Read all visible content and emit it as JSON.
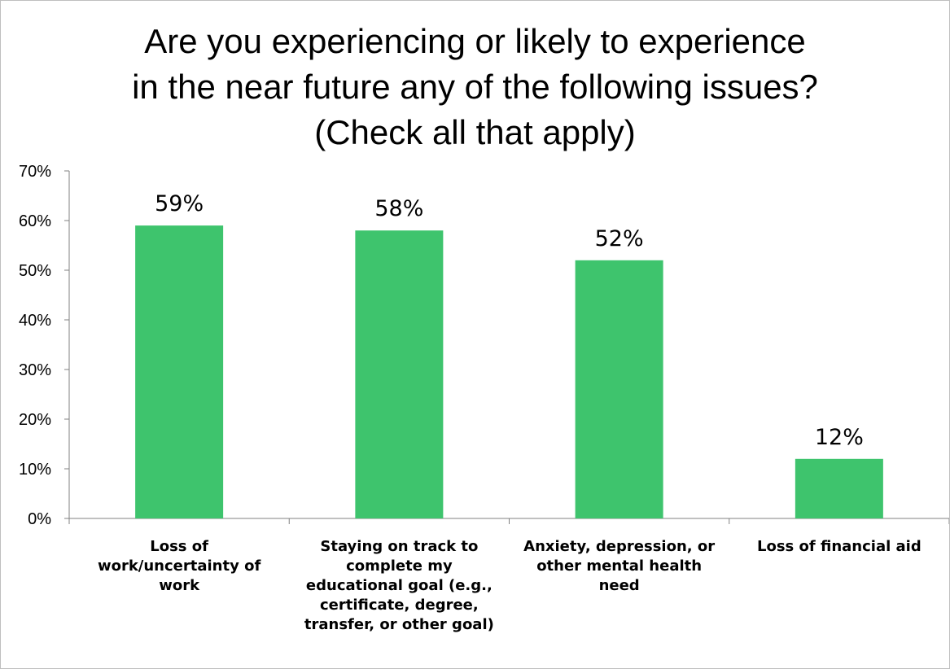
{
  "chart_data": {
    "type": "bar",
    "title": "Are you experiencing or likely to experience in the near future any of the following issues? (Check all that apply)",
    "title_lines": [
      "Are you experiencing or likely to experience",
      "in the near future any of the following issues?",
      "(Check all that apply)"
    ],
    "categories": [
      "Loss of work/uncertainty of work",
      "Staying on track to complete my educational goal (e.g., certificate, degree, transfer, or other goal)",
      "Anxiety, depression, or other mental health need",
      "Loss of financial aid"
    ],
    "category_label_lines": [
      [
        "Loss of",
        "work/uncertainty of",
        "work"
      ],
      [
        "Staying on track to",
        "complete my",
        "educational goal (e.g.,",
        "certificate, degree,",
        "transfer, or other goal)"
      ],
      [
        "Anxiety, depression, or",
        "other mental health",
        "need"
      ],
      [
        "Loss of financial aid"
      ]
    ],
    "values": [
      59,
      58,
      52,
      12
    ],
    "data_labels": [
      "59%",
      "58%",
      "52%",
      "12%"
    ],
    "ylim": [
      0,
      70
    ],
    "yticks": [
      "0%",
      "10%",
      "20%",
      "30%",
      "40%",
      "50%",
      "60%",
      "70%"
    ],
    "xlabel": "",
    "ylabel": "",
    "grid": false,
    "legend": "none",
    "bar_color": "#3ec46d"
  }
}
